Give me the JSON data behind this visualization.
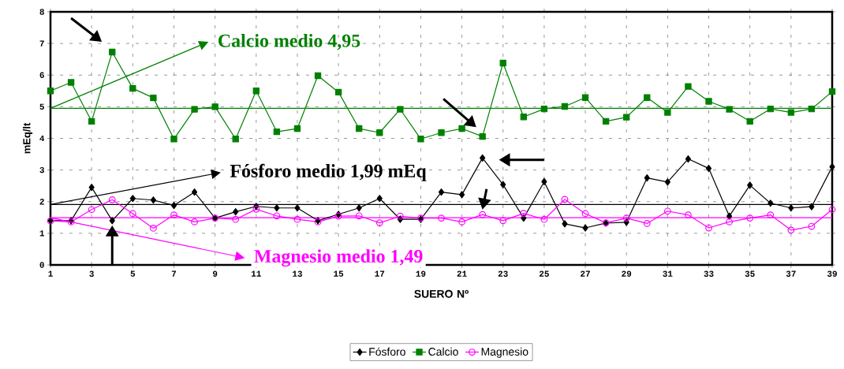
{
  "chart_data": {
    "type": "line",
    "xlabel": "SUERO Nº",
    "ylabel": "mEq/lt",
    "x": [
      1,
      2,
      3,
      4,
      5,
      6,
      7,
      8,
      9,
      10,
      11,
      12,
      13,
      14,
      15,
      16,
      17,
      18,
      19,
      20,
      21,
      22,
      23,
      24,
      25,
      26,
      27,
      28,
      29,
      30,
      31,
      32,
      33,
      34,
      35,
      36,
      37,
      38,
      39
    ],
    "xlim": [
      1,
      39
    ],
    "xticks": [
      1,
      3,
      5,
      7,
      9,
      11,
      13,
      15,
      17,
      19,
      21,
      23,
      25,
      27,
      29,
      31,
      33,
      35,
      37,
      39
    ],
    "ylim": [
      0,
      8
    ],
    "yticks": [
      0,
      1,
      2,
      3,
      4,
      5,
      6,
      7,
      8
    ],
    "grid": true,
    "legend": "bottom",
    "series": [
      {
        "name": "Fósforo",
        "color": "#000000",
        "marker": "diamond",
        "values": [
          1.4,
          1.4,
          2.45,
          1.4,
          2.1,
          2.05,
          1.88,
          2.3,
          1.48,
          1.68,
          1.85,
          1.8,
          1.8,
          1.4,
          1.6,
          1.8,
          2.1,
          1.44,
          1.44,
          2.3,
          2.22,
          3.38,
          2.54,
          1.48,
          2.63,
          1.3,
          1.17,
          1.32,
          1.35,
          2.75,
          2.62,
          3.35,
          3.05,
          1.54,
          2.52,
          1.95,
          1.8,
          1.84,
          3.1
        ]
      },
      {
        "name": "Calcio",
        "color": "#008000",
        "marker": "square",
        "values": [
          5.5,
          5.77,
          4.54,
          6.73,
          5.58,
          5.28,
          3.98,
          4.92,
          5.0,
          3.98,
          5.5,
          4.21,
          4.31,
          5.98,
          5.46,
          4.31,
          4.18,
          4.92,
          3.98,
          4.18,
          4.31,
          4.06,
          6.38,
          4.68,
          4.93,
          5.01,
          5.29,
          4.54,
          4.67,
          5.29,
          4.82,
          5.64,
          5.17,
          4.92,
          4.54,
          4.93,
          4.82,
          4.93,
          5.48
        ]
      },
      {
        "name": "Magnesio",
        "color": "#ff00ff",
        "marker": "circle",
        "values": [
          1.39,
          1.36,
          1.75,
          2.06,
          1.62,
          1.16,
          1.58,
          1.36,
          1.48,
          1.44,
          1.76,
          1.55,
          1.44,
          1.36,
          1.54,
          1.55,
          1.33,
          1.54,
          1.48,
          1.48,
          1.36,
          1.59,
          1.4,
          1.63,
          1.44,
          2.07,
          1.62,
          1.33,
          1.48,
          1.31,
          1.7,
          1.58,
          1.17,
          1.36,
          1.48,
          1.58,
          1.1,
          1.22,
          1.75
        ]
      }
    ],
    "ref_lines": [
      {
        "axis": "y",
        "value": 4.95,
        "label": "Calcio medio 4,95",
        "color": "#008000"
      },
      {
        "axis": "y",
        "value": 1.91,
        "label": "Fósforo medio 1,99 mEq",
        "color": "#000000"
      },
      {
        "axis": "y",
        "value": 1.49,
        "label": "Magnesio medio 1,49",
        "color": "#ff00ff"
      }
    ]
  }
}
